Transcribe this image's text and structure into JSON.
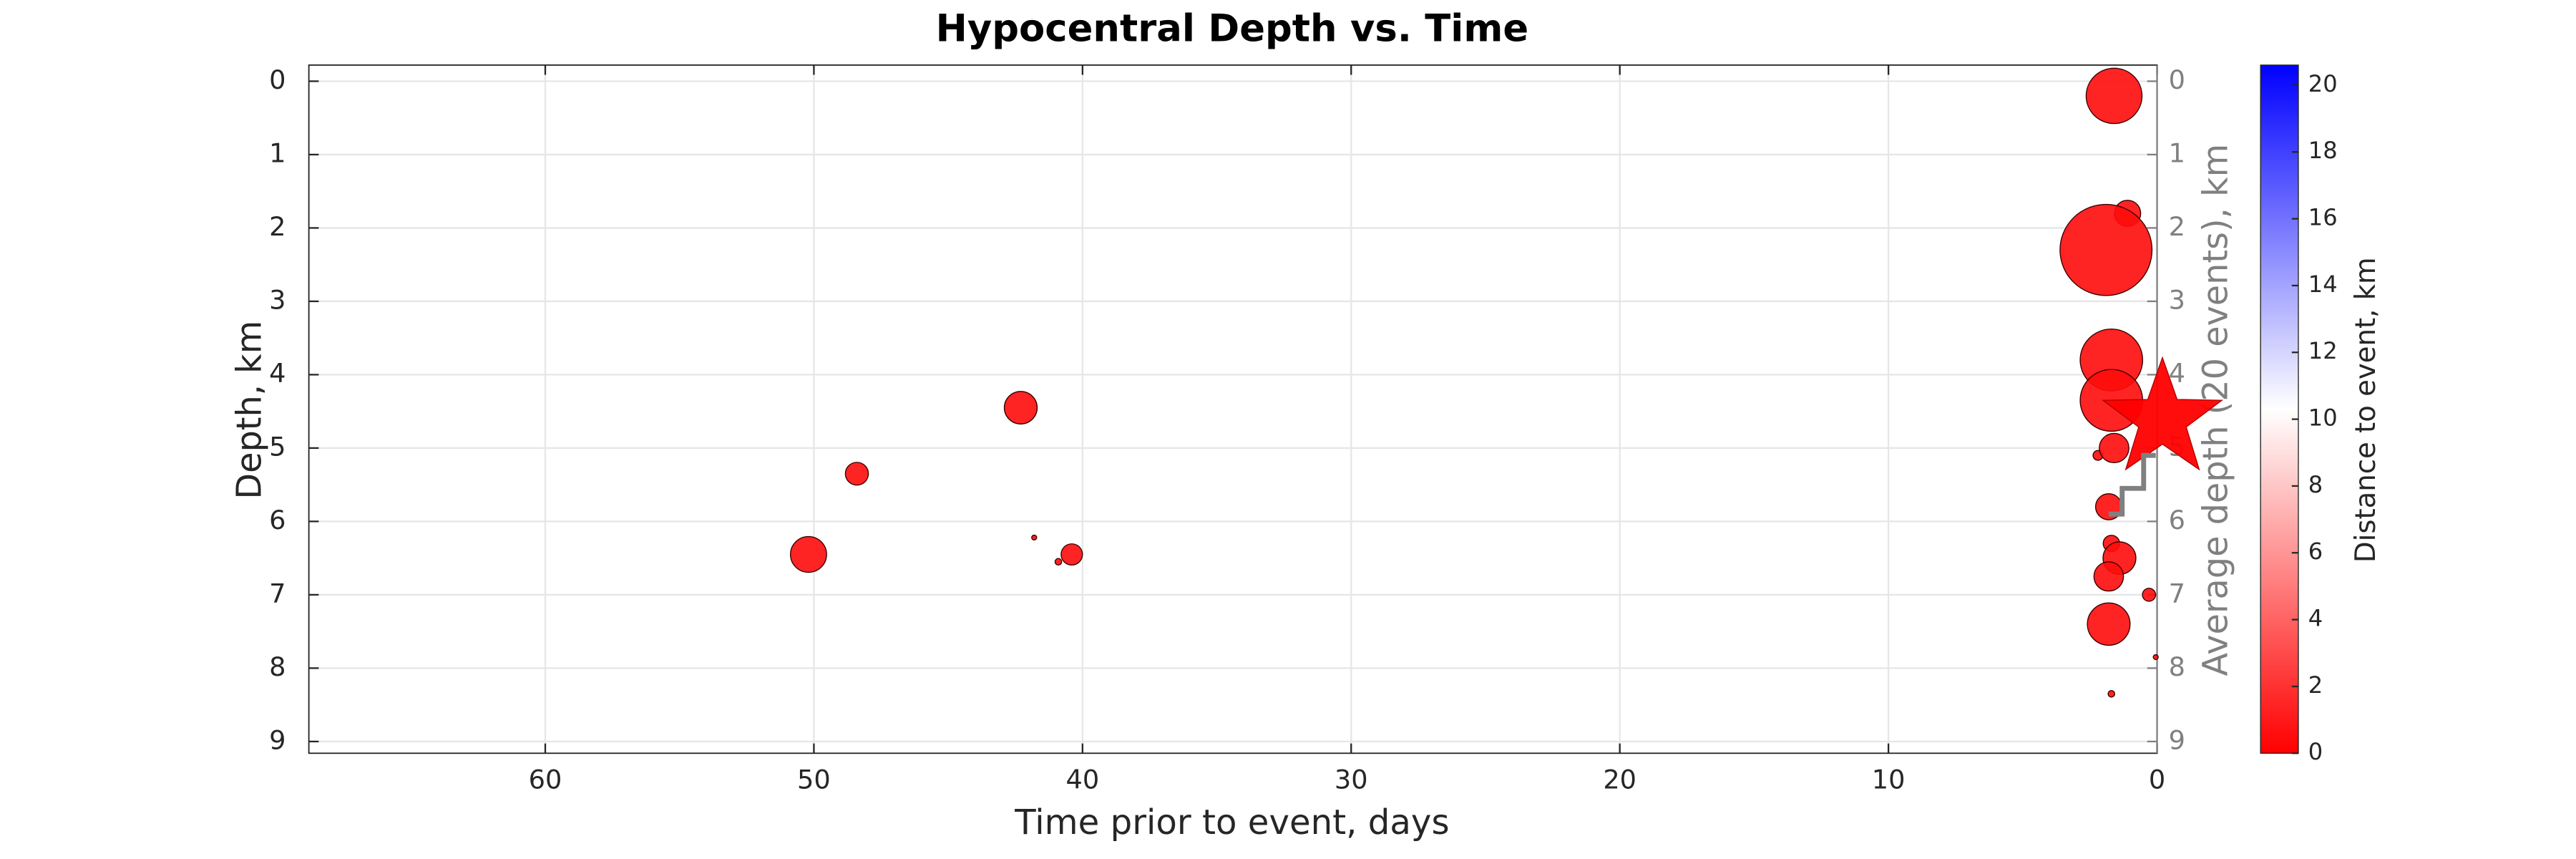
{
  "chart_data": {
    "type": "scatter",
    "title": "Hypocentral Depth vs. Time",
    "xlabel": "Time prior to event, days",
    "ylabel": "Depth, km",
    "y2label": "Average depth (20 events), km",
    "colorbar_label": "Distance to event, km",
    "xlim": [
      68.8,
      0
    ],
    "xticks": [
      60,
      50,
      40,
      30,
      20,
      10,
      0
    ],
    "ylim": [
      -0.22,
      9.16
    ],
    "yticks": [
      0,
      1,
      2,
      3,
      4,
      5,
      6,
      7,
      8,
      9
    ],
    "y2lim": [
      -0.22,
      9.16
    ],
    "y2ticks": [
      0,
      1,
      2,
      3,
      4,
      5,
      6,
      7,
      8,
      9
    ],
    "y_reversed": true,
    "grid": true,
    "colormap": [
      "#ff0000",
      "#ffffff",
      "#0000ff"
    ],
    "clim": [
      0,
      20.6
    ],
    "cticks": [
      0,
      2,
      4,
      6,
      8,
      10,
      12,
      14,
      16,
      18,
      20
    ],
    "series": [
      {
        "marker": "circle",
        "x": [
          1.6,
          1.1,
          1.9,
          1.7,
          1.7,
          42.3,
          48.4,
          50.2,
          41.8,
          40.4,
          40.9,
          2.2,
          1.6,
          1.8,
          1.7,
          1.4,
          1.8,
          0.3,
          1.8,
          0.05,
          1.7
        ],
        "values": [
          0.2,
          1.8,
          2.3,
          3.8,
          4.35,
          4.45,
          5.35,
          6.45,
          6.22,
          6.45,
          6.55,
          5.1,
          5.0,
          5.8,
          6.3,
          6.5,
          6.75,
          7.0,
          7.4,
          7.85,
          8.35
        ],
        "sizes": [
          17,
          8,
          28,
          19,
          19,
          10,
          7,
          11,
          1.5,
          6.5,
          2,
          3,
          9,
          8,
          5,
          10,
          9,
          4,
          13,
          1.5,
          2
        ],
        "distances": [
          0.5,
          0.5,
          0.5,
          0.5,
          0.5,
          0.5,
          0.5,
          0.5,
          0.5,
          0.5,
          0.5,
          0.5,
          0.5,
          0.5,
          0.5,
          0.5,
          0.5,
          0.5,
          0.5,
          0.5,
          0.5
        ]
      },
      {
        "marker": "star",
        "x": [
          -0.2
        ],
        "values": [
          4.61
        ],
        "sizes": [
          38
        ],
        "distances": [
          0
        ]
      },
      {
        "marker": "line",
        "axis": "y2",
        "color": "#808080",
        "x": [
          1.8,
          1.3,
          1.3,
          0.5,
          0.5,
          0.05
        ],
        "values": [
          5.9,
          5.9,
          5.55,
          5.55,
          5.1,
          5.1
        ]
      }
    ]
  }
}
